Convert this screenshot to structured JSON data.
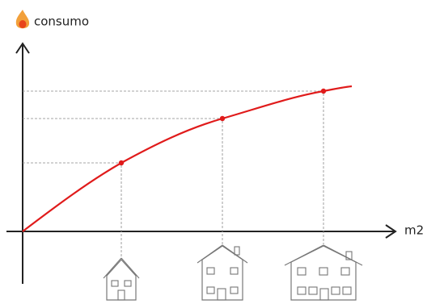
{
  "y_axis_label": "consumo",
  "x_axis_label": "m2"
}
